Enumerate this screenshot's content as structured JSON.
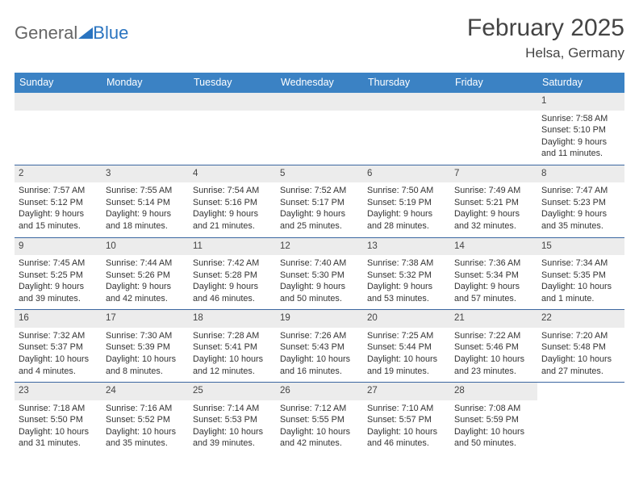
{
  "header": {
    "logo_general": "General",
    "logo_blue": "Blue",
    "month_title": "February 2025",
    "subtitle": "Helsa, Germany"
  },
  "colors": {
    "header_bg": "#3b82c4",
    "row_border": "#3b66a0",
    "daynum_bg": "#ececec",
    "brand_blue": "#2a74c0"
  },
  "columns": [
    "Sunday",
    "Monday",
    "Tuesday",
    "Wednesday",
    "Thursday",
    "Friday",
    "Saturday"
  ],
  "weeks": [
    [
      {
        "empty": true
      },
      {
        "empty": true
      },
      {
        "empty": true
      },
      {
        "empty": true
      },
      {
        "empty": true
      },
      {
        "empty": true
      },
      {
        "day": "1",
        "sunrise": "Sunrise: 7:58 AM",
        "sunset": "Sunset: 5:10 PM",
        "daylight1": "Daylight: 9 hours",
        "daylight2": "and 11 minutes."
      }
    ],
    [
      {
        "day": "2",
        "sunrise": "Sunrise: 7:57 AM",
        "sunset": "Sunset: 5:12 PM",
        "daylight1": "Daylight: 9 hours",
        "daylight2": "and 15 minutes."
      },
      {
        "day": "3",
        "sunrise": "Sunrise: 7:55 AM",
        "sunset": "Sunset: 5:14 PM",
        "daylight1": "Daylight: 9 hours",
        "daylight2": "and 18 minutes."
      },
      {
        "day": "4",
        "sunrise": "Sunrise: 7:54 AM",
        "sunset": "Sunset: 5:16 PM",
        "daylight1": "Daylight: 9 hours",
        "daylight2": "and 21 minutes."
      },
      {
        "day": "5",
        "sunrise": "Sunrise: 7:52 AM",
        "sunset": "Sunset: 5:17 PM",
        "daylight1": "Daylight: 9 hours",
        "daylight2": "and 25 minutes."
      },
      {
        "day": "6",
        "sunrise": "Sunrise: 7:50 AM",
        "sunset": "Sunset: 5:19 PM",
        "daylight1": "Daylight: 9 hours",
        "daylight2": "and 28 minutes."
      },
      {
        "day": "7",
        "sunrise": "Sunrise: 7:49 AM",
        "sunset": "Sunset: 5:21 PM",
        "daylight1": "Daylight: 9 hours",
        "daylight2": "and 32 minutes."
      },
      {
        "day": "8",
        "sunrise": "Sunrise: 7:47 AM",
        "sunset": "Sunset: 5:23 PM",
        "daylight1": "Daylight: 9 hours",
        "daylight2": "and 35 minutes."
      }
    ],
    [
      {
        "day": "9",
        "sunrise": "Sunrise: 7:45 AM",
        "sunset": "Sunset: 5:25 PM",
        "daylight1": "Daylight: 9 hours",
        "daylight2": "and 39 minutes."
      },
      {
        "day": "10",
        "sunrise": "Sunrise: 7:44 AM",
        "sunset": "Sunset: 5:26 PM",
        "daylight1": "Daylight: 9 hours",
        "daylight2": "and 42 minutes."
      },
      {
        "day": "11",
        "sunrise": "Sunrise: 7:42 AM",
        "sunset": "Sunset: 5:28 PM",
        "daylight1": "Daylight: 9 hours",
        "daylight2": "and 46 minutes."
      },
      {
        "day": "12",
        "sunrise": "Sunrise: 7:40 AM",
        "sunset": "Sunset: 5:30 PM",
        "daylight1": "Daylight: 9 hours",
        "daylight2": "and 50 minutes."
      },
      {
        "day": "13",
        "sunrise": "Sunrise: 7:38 AM",
        "sunset": "Sunset: 5:32 PM",
        "daylight1": "Daylight: 9 hours",
        "daylight2": "and 53 minutes."
      },
      {
        "day": "14",
        "sunrise": "Sunrise: 7:36 AM",
        "sunset": "Sunset: 5:34 PM",
        "daylight1": "Daylight: 9 hours",
        "daylight2": "and 57 minutes."
      },
      {
        "day": "15",
        "sunrise": "Sunrise: 7:34 AM",
        "sunset": "Sunset: 5:35 PM",
        "daylight1": "Daylight: 10 hours",
        "daylight2": "and 1 minute."
      }
    ],
    [
      {
        "day": "16",
        "sunrise": "Sunrise: 7:32 AM",
        "sunset": "Sunset: 5:37 PM",
        "daylight1": "Daylight: 10 hours",
        "daylight2": "and 4 minutes."
      },
      {
        "day": "17",
        "sunrise": "Sunrise: 7:30 AM",
        "sunset": "Sunset: 5:39 PM",
        "daylight1": "Daylight: 10 hours",
        "daylight2": "and 8 minutes."
      },
      {
        "day": "18",
        "sunrise": "Sunrise: 7:28 AM",
        "sunset": "Sunset: 5:41 PM",
        "daylight1": "Daylight: 10 hours",
        "daylight2": "and 12 minutes."
      },
      {
        "day": "19",
        "sunrise": "Sunrise: 7:26 AM",
        "sunset": "Sunset: 5:43 PM",
        "daylight1": "Daylight: 10 hours",
        "daylight2": "and 16 minutes."
      },
      {
        "day": "20",
        "sunrise": "Sunrise: 7:25 AM",
        "sunset": "Sunset: 5:44 PM",
        "daylight1": "Daylight: 10 hours",
        "daylight2": "and 19 minutes."
      },
      {
        "day": "21",
        "sunrise": "Sunrise: 7:22 AM",
        "sunset": "Sunset: 5:46 PM",
        "daylight1": "Daylight: 10 hours",
        "daylight2": "and 23 minutes."
      },
      {
        "day": "22",
        "sunrise": "Sunrise: 7:20 AM",
        "sunset": "Sunset: 5:48 PM",
        "daylight1": "Daylight: 10 hours",
        "daylight2": "and 27 minutes."
      }
    ],
    [
      {
        "day": "23",
        "sunrise": "Sunrise: 7:18 AM",
        "sunset": "Sunset: 5:50 PM",
        "daylight1": "Daylight: 10 hours",
        "daylight2": "and 31 minutes."
      },
      {
        "day": "24",
        "sunrise": "Sunrise: 7:16 AM",
        "sunset": "Sunset: 5:52 PM",
        "daylight1": "Daylight: 10 hours",
        "daylight2": "and 35 minutes."
      },
      {
        "day": "25",
        "sunrise": "Sunrise: 7:14 AM",
        "sunset": "Sunset: 5:53 PM",
        "daylight1": "Daylight: 10 hours",
        "daylight2": "and 39 minutes."
      },
      {
        "day": "26",
        "sunrise": "Sunrise: 7:12 AM",
        "sunset": "Sunset: 5:55 PM",
        "daylight1": "Daylight: 10 hours",
        "daylight2": "and 42 minutes."
      },
      {
        "day": "27",
        "sunrise": "Sunrise: 7:10 AM",
        "sunset": "Sunset: 5:57 PM",
        "daylight1": "Daylight: 10 hours",
        "daylight2": "and 46 minutes."
      },
      {
        "day": "28",
        "sunrise": "Sunrise: 7:08 AM",
        "sunset": "Sunset: 5:59 PM",
        "daylight1": "Daylight: 10 hours",
        "daylight2": "and 50 minutes."
      },
      {
        "empty": true,
        "noBg": true
      }
    ]
  ]
}
